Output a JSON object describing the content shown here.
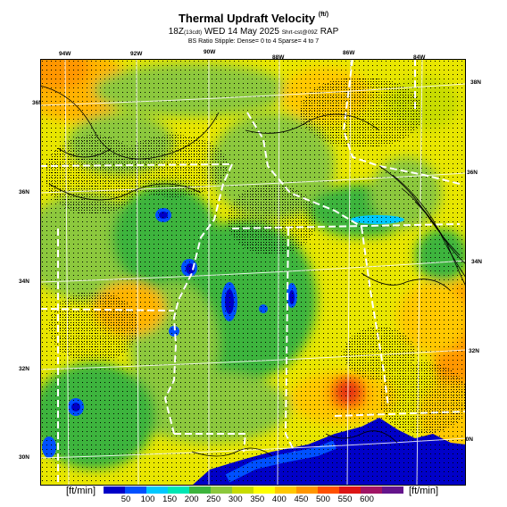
{
  "header": {
    "title": "Thermal Updraft Velocity",
    "title_unit": "(ft/)",
    "subtitle_hour": "18Z",
    "subtitle_local": "(13cdt)",
    "subtitle_date": "WED 14 May 2025",
    "subtitle_run": "Shrt-cst@09Z",
    "subtitle_model": "RAP",
    "stipple_note": "BS Ratio Stipple: Dense= 0 to 4  Sparse= 4 to 7"
  },
  "longitude_labels": [
    "94W",
    "92W",
    "90W",
    "88W",
    "86W",
    "84W"
  ],
  "latitude_labels_left": [
    "36N",
    "34N",
    "32N",
    "30N"
  ],
  "latitude_labels_right": [
    "38N",
    "36N",
    "34N",
    "32N",
    "30N"
  ],
  "colorbar": {
    "unit_left": "[ft/min]",
    "unit_right": "[ft/min]",
    "ticks": [
      "50",
      "100",
      "150",
      "200",
      "250",
      "300",
      "350",
      "400",
      "450",
      "500",
      "550",
      "600"
    ],
    "colors": [
      "#0000c8",
      "#0050ff",
      "#00c8ff",
      "#00e6b4",
      "#3cb43c",
      "#8cc83c",
      "#c8dc00",
      "#ffff00",
      "#ffc800",
      "#ff9600",
      "#ff5000",
      "#dc1414",
      "#a01464",
      "#64148c"
    ]
  }
}
